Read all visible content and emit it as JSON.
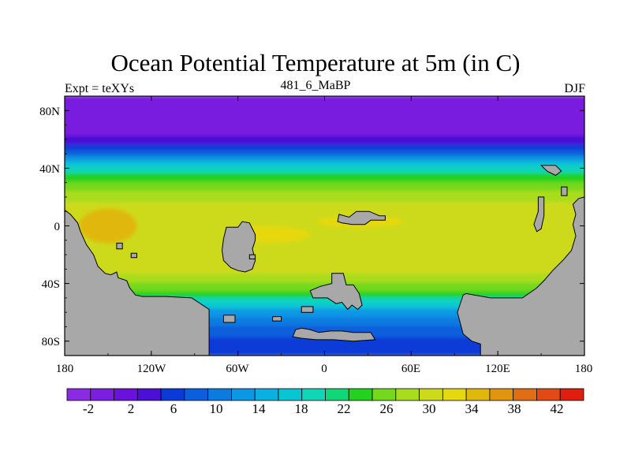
{
  "title": "Ocean Potential Temperature at 5m (in C)",
  "left_label": "Expt = teXYs",
  "center_label": "481_6_MaBP",
  "right_label": "DJF",
  "lat_ticks": [
    "80N",
    "40N",
    "0",
    "40S",
    "80S"
  ],
  "lon_ticks": [
    "180",
    "120W",
    "60W",
    "0",
    "60E",
    "120E",
    "180"
  ],
  "colorbar": {
    "colors": [
      "#8a2be2",
      "#7a1fe0",
      "#6a12dc",
      "#4b0fd8",
      "#0a3ad8",
      "#0b5fdc",
      "#0b7be0",
      "#0b97e4",
      "#0ab0e2",
      "#07c6d4",
      "#10d6b8",
      "#10d878",
      "#22d21e",
      "#74d81c",
      "#a8dc1e",
      "#cdda1c",
      "#e6d810",
      "#e0b80c",
      "#e09410",
      "#e06e14",
      "#e04a16",
      "#e01e10"
    ],
    "labels": [
      "-2",
      "2",
      "6",
      "10",
      "14",
      "18",
      "22",
      "26",
      "30",
      "34",
      "38",
      "42"
    ]
  },
  "map": {
    "land_color": "#a8a8a8",
    "bands": [
      {
        "lat_top": 90,
        "lat_bottom": 62,
        "color": "#7a1fe0"
      },
      {
        "lat_top": 62,
        "lat_bottom": 56,
        "color": "#4b0fd8"
      },
      {
        "lat_top": 56,
        "lat_bottom": 52,
        "color": "#0a3ad8"
      },
      {
        "lat_top": 52,
        "lat_bottom": 48,
        "color": "#0b5fdc"
      },
      {
        "lat_top": 48,
        "lat_bottom": 44,
        "color": "#0b97e4"
      },
      {
        "lat_top": 44,
        "lat_bottom": 40,
        "color": "#07c6d4"
      },
      {
        "lat_top": 40,
        "lat_bottom": 36,
        "color": "#10d6b8"
      },
      {
        "lat_top": 36,
        "lat_bottom": 30,
        "color": "#22d21e"
      },
      {
        "lat_top": 30,
        "lat_bottom": 24,
        "color": "#74d81c"
      },
      {
        "lat_top": 24,
        "lat_bottom": 16,
        "color": "#a8dc1e"
      },
      {
        "lat_top": 16,
        "lat_bottom": -34,
        "color": "#cdda1c"
      },
      {
        "lat_top": -34,
        "lat_bottom": -40,
        "color": "#a8dc1e"
      },
      {
        "lat_top": -40,
        "lat_bottom": -46,
        "color": "#74d81c"
      },
      {
        "lat_top": -46,
        "lat_bottom": -50,
        "color": "#22d21e"
      },
      {
        "lat_top": -50,
        "lat_bottom": -54,
        "color": "#10d6b8"
      },
      {
        "lat_top": -54,
        "lat_bottom": -58,
        "color": "#07c6d4"
      },
      {
        "lat_top": -58,
        "lat_bottom": -64,
        "color": "#0b97e4"
      },
      {
        "lat_top": -64,
        "lat_bottom": -70,
        "color": "#0b7be0"
      },
      {
        "lat_top": -70,
        "lat_bottom": -78,
        "color": "#0b5fdc"
      },
      {
        "lat_top": -78,
        "lat_bottom": -90,
        "color": "#0a3ad8"
      }
    ],
    "warm_pools": [
      {
        "lon": -150,
        "lat": 0,
        "rx": 20,
        "ry": 12,
        "color": "#e0b80c"
      },
      {
        "lon": -40,
        "lat": -6,
        "rx": 30,
        "ry": 6,
        "color": "#e6d810"
      },
      {
        "lon": 25,
        "lat": 3,
        "rx": 30,
        "ry": 4,
        "color": "#e6d810"
      }
    ],
    "land": [
      {
        "name": "america-west",
        "points": [
          [
            -180,
            11
          ],
          [
            -176,
            8
          ],
          [
            -171,
            2
          ],
          [
            -169,
            -4
          ],
          [
            -165,
            -13
          ],
          [
            -160,
            -20
          ],
          [
            -157,
            -28
          ],
          [
            -152,
            -33
          ],
          [
            -148,
            -34
          ],
          [
            -144,
            -32
          ],
          [
            -143,
            -36
          ],
          [
            -137,
            -38
          ],
          [
            -135,
            -43
          ],
          [
            -131,
            -48
          ],
          [
            -126,
            -49
          ],
          [
            -110,
            -49
          ],
          [
            -92,
            -50
          ],
          [
            -80,
            -58
          ],
          [
            -80,
            -90
          ],
          [
            -180,
            -90
          ]
        ]
      },
      {
        "name": "africa-mid",
        "points": [
          [
            -68,
            -1
          ],
          [
            -60,
            -1
          ],
          [
            -57,
            3
          ],
          [
            -52,
            2
          ],
          [
            -50,
            -2
          ],
          [
            -48,
            -6
          ],
          [
            -48,
            -10
          ],
          [
            -50,
            -16
          ],
          [
            -48,
            -24
          ],
          [
            -50,
            -30
          ],
          [
            -55,
            -32
          ],
          [
            -60,
            -31
          ],
          [
            -65,
            -29
          ],
          [
            -70,
            -24
          ],
          [
            -71,
            -17
          ],
          [
            -70,
            -9
          ]
        ]
      },
      {
        "name": "island-north-1",
        "points": [
          [
            10,
            8
          ],
          [
            17,
            6
          ],
          [
            22,
            10
          ],
          [
            31,
            10
          ],
          [
            38,
            7
          ],
          [
            42,
            7
          ],
          [
            42,
            4
          ],
          [
            32,
            4
          ],
          [
            28,
            1
          ],
          [
            19,
            1
          ],
          [
            12,
            2
          ],
          [
            9,
            3
          ]
        ]
      },
      {
        "name": "island-south-1",
        "points": [
          [
            5,
            -33
          ],
          [
            13,
            -33
          ],
          [
            15,
            -41
          ],
          [
            20,
            -41
          ],
          [
            24,
            -47
          ],
          [
            26,
            -55
          ],
          [
            23,
            -58
          ],
          [
            19,
            -55
          ],
          [
            16,
            -58
          ],
          [
            12,
            -53
          ],
          [
            8,
            -54
          ],
          [
            2,
            -50
          ],
          [
            -8,
            -50
          ],
          [
            -10,
            -45
          ],
          [
            -3,
            -42
          ],
          [
            5,
            -40
          ]
        ]
      },
      {
        "name": "antarctic-shelf",
        "points": [
          [
            -20,
            -72
          ],
          [
            -16,
            -71
          ],
          [
            -10,
            -72
          ],
          [
            -4,
            -74
          ],
          [
            4,
            -73
          ],
          [
            12,
            -73
          ],
          [
            20,
            -74
          ],
          [
            32,
            -74
          ],
          [
            35,
            -79
          ],
          [
            20,
            -80
          ],
          [
            6,
            -79
          ],
          [
            -6,
            -79
          ],
          [
            -16,
            -78
          ],
          [
            -22,
            -77
          ]
        ]
      },
      {
        "name": "east-landmass",
        "points": [
          [
            96,
            -48
          ],
          [
            98,
            -47
          ],
          [
            115,
            -50
          ],
          [
            124,
            -50
          ],
          [
            137,
            -50
          ],
          [
            147,
            -43
          ],
          [
            152,
            -38
          ],
          [
            158,
            -31
          ],
          [
            165,
            -24
          ],
          [
            171,
            -17
          ],
          [
            174,
            -7
          ],
          [
            172,
            1
          ],
          [
            174,
            8
          ],
          [
            172,
            15
          ],
          [
            176,
            19
          ],
          [
            180,
            20
          ],
          [
            180,
            -90
          ],
          [
            108,
            -90
          ],
          [
            108,
            -82
          ],
          [
            102,
            -80
          ],
          [
            96,
            -75
          ],
          [
            92,
            -60
          ]
        ]
      },
      {
        "name": "island-east-1",
        "points": [
          [
            148,
            20
          ],
          [
            152,
            20
          ],
          [
            152,
            7
          ],
          [
            150,
            -2
          ],
          [
            147,
            -4
          ],
          [
            145,
            1
          ],
          [
            148,
            10
          ]
        ]
      },
      {
        "name": "island-east-2",
        "points": [
          [
            164,
            27
          ],
          [
            168,
            27
          ],
          [
            168,
            21
          ],
          [
            164,
            21
          ]
        ]
      },
      {
        "name": "island-ne-1",
        "points": [
          [
            150,
            42
          ],
          [
            160,
            42
          ],
          [
            164,
            38
          ],
          [
            160,
            35
          ],
          [
            154,
            38
          ]
        ]
      },
      {
        "name": "island-west-1",
        "points": [
          [
            -144,
            -12
          ],
          [
            -140,
            -12
          ],
          [
            -140,
            -16
          ],
          [
            -144,
            -16
          ]
        ]
      },
      {
        "name": "island-west-2",
        "points": [
          [
            -134,
            -19
          ],
          [
            -130,
            -19
          ],
          [
            -130,
            -22
          ],
          [
            -134,
            -22
          ]
        ]
      },
      {
        "name": "island-mid-1",
        "points": [
          [
            -52,
            -20
          ],
          [
            -48,
            -20
          ],
          [
            -48,
            -23
          ],
          [
            -52,
            -23
          ]
        ]
      },
      {
        "name": "island-south-2",
        "points": [
          [
            -36,
            -63
          ],
          [
            -30,
            -63
          ],
          [
            -30,
            -66
          ],
          [
            -36,
            -66
          ]
        ]
      },
      {
        "name": "island-south-3",
        "points": [
          [
            -70,
            -62
          ],
          [
            -62,
            -62
          ],
          [
            -62,
            -67
          ],
          [
            -70,
            -67
          ]
        ]
      },
      {
        "name": "island-south-4",
        "points": [
          [
            -16,
            -56
          ],
          [
            -8,
            -56
          ],
          [
            -8,
            -60
          ],
          [
            -16,
            -60
          ]
        ]
      }
    ]
  }
}
